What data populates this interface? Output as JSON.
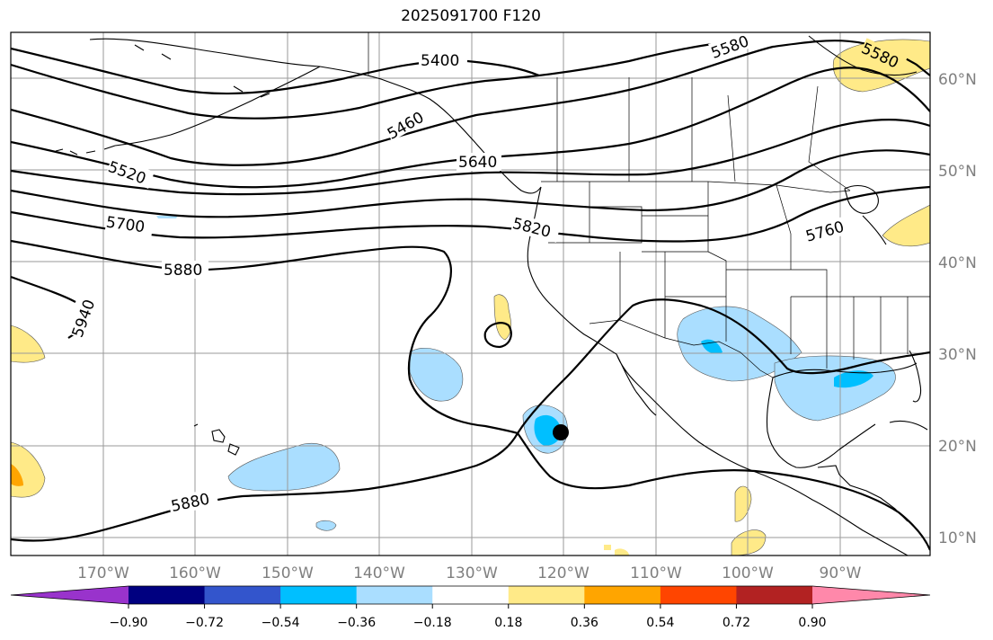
{
  "title": "2025091700 F120",
  "lat_labels": [
    "60°N",
    "50°N",
    "40°N",
    "30°N",
    "20°N",
    "10°N"
  ],
  "lon_labels": [
    "170°W",
    "160°W",
    "150°W",
    "140°W",
    "130°W",
    "120°W",
    "110°W",
    "100°W",
    "90°W"
  ],
  "contour_labels": [
    "5400",
    "5460",
    "5520",
    "5580",
    "5580",
    "5640",
    "5700",
    "5760",
    "5820",
    "5880",
    "5880",
    "5940"
  ],
  "colorbar": {
    "colors": [
      "#9933cc",
      "#000080",
      "#3355cc",
      "#00bfff",
      "#aadeff",
      "#ffffff",
      "#ffea88",
      "#ffa500",
      "#ff4500",
      "#b22222",
      "#ff88aa"
    ],
    "ticks": [
      "−0.90",
      "−0.72",
      "−0.54",
      "−0.36",
      "−0.18",
      "0.18",
      "0.36",
      "0.54",
      "0.72",
      "0.90"
    ]
  },
  "colors": {
    "neg_light": "#aadeff",
    "neg_mid": "#00bfff",
    "pos_light": "#ffea88",
    "pos_mid": "#ffa500",
    "contour": "#000000",
    "grid": "#9a9a9a"
  },
  "marker": "storm-center-dot"
}
